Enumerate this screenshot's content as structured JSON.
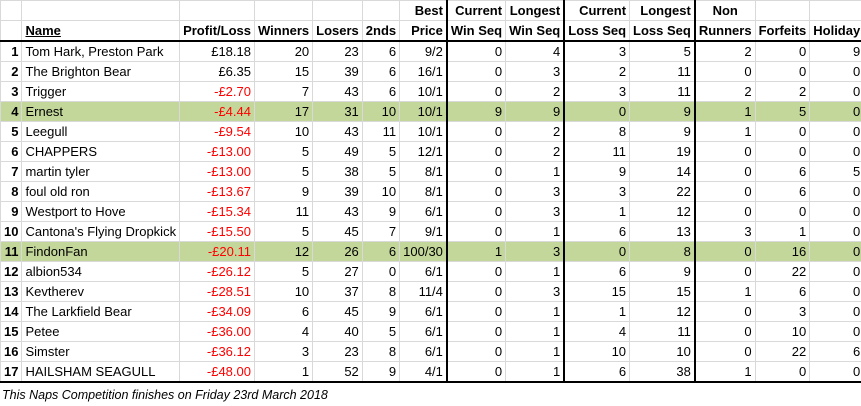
{
  "header": {
    "row1": [
      "",
      "",
      "",
      "",
      "",
      "",
      "Best",
      "Current",
      "Longest",
      "Current",
      "Longest",
      "Non",
      "",
      ""
    ],
    "row2": [
      "",
      "Name",
      "Profit/Loss",
      "Winners",
      "Losers",
      "2nds",
      "Price",
      "Win Seq",
      "Win Seq",
      "Loss Seq",
      "Loss Seq",
      "Runners",
      "Forfeits",
      "Holiday"
    ]
  },
  "rows": [
    {
      "rank": "1",
      "name": "Tom Hark, Preston Park",
      "pl": "£18.18",
      "neg": false,
      "winners": "20",
      "losers": "23",
      "seconds": "6",
      "best": "9/2",
      "cws": "0",
      "lws": "4",
      "cls": "3",
      "lls": "5",
      "nr": "2",
      "ff": "0",
      "hol": "9",
      "hl": false
    },
    {
      "rank": "2",
      "name": "The Brighton Bear",
      "pl": "£6.35",
      "neg": false,
      "winners": "15",
      "losers": "39",
      "seconds": "6",
      "best": "16/1",
      "cws": "0",
      "lws": "3",
      "cls": "2",
      "lls": "11",
      "nr": "0",
      "ff": "0",
      "hol": "0",
      "hl": false
    },
    {
      "rank": "3",
      "name": "Trigger",
      "pl": "-£2.70",
      "neg": true,
      "winners": "7",
      "losers": "43",
      "seconds": "6",
      "best": "10/1",
      "cws": "0",
      "lws": "2",
      "cls": "3",
      "lls": "11",
      "nr": "2",
      "ff": "2",
      "hol": "0",
      "hl": false
    },
    {
      "rank": "4",
      "name": "Ernest",
      "pl": "-£4.44",
      "neg": true,
      "winners": "17",
      "losers": "31",
      "seconds": "10",
      "best": "10/1",
      "cws": "9",
      "lws": "9",
      "cls": "0",
      "lls": "9",
      "nr": "1",
      "ff": "5",
      "hol": "0",
      "hl": true
    },
    {
      "rank": "5",
      "name": "Leegull",
      "pl": "-£9.54",
      "neg": true,
      "winners": "10",
      "losers": "43",
      "seconds": "11",
      "best": "10/1",
      "cws": "0",
      "lws": "2",
      "cls": "8",
      "lls": "9",
      "nr": "1",
      "ff": "0",
      "hol": "0",
      "hl": false
    },
    {
      "rank": "6",
      "name": "CHAPPERS",
      "pl": "-£13.00",
      "neg": true,
      "winners": "5",
      "losers": "49",
      "seconds": "5",
      "best": "12/1",
      "cws": "0",
      "lws": "2",
      "cls": "11",
      "lls": "19",
      "nr": "0",
      "ff": "0",
      "hol": "0",
      "hl": false
    },
    {
      "rank": "7",
      "name": "martin tyler",
      "pl": "-£13.00",
      "neg": true,
      "winners": "5",
      "losers": "38",
      "seconds": "5",
      "best": "8/1",
      "cws": "0",
      "lws": "1",
      "cls": "9",
      "lls": "14",
      "nr": "0",
      "ff": "6",
      "hol": "5",
      "hl": false
    },
    {
      "rank": "8",
      "name": "foul old ron",
      "pl": "-£13.67",
      "neg": true,
      "winners": "9",
      "losers": "39",
      "seconds": "10",
      "best": "8/1",
      "cws": "0",
      "lws": "3",
      "cls": "3",
      "lls": "22",
      "nr": "0",
      "ff": "6",
      "hol": "0",
      "hl": false
    },
    {
      "rank": "9",
      "name": "Westport to Hove",
      "pl": "-£15.34",
      "neg": true,
      "winners": "11",
      "losers": "43",
      "seconds": "9",
      "best": "6/1",
      "cws": "0",
      "lws": "3",
      "cls": "1",
      "lls": "12",
      "nr": "0",
      "ff": "0",
      "hol": "0",
      "hl": false
    },
    {
      "rank": "10",
      "name": "Cantona's Flying Dropkick",
      "pl": "-£15.50",
      "neg": true,
      "winners": "5",
      "losers": "45",
      "seconds": "7",
      "best": "9/1",
      "cws": "0",
      "lws": "1",
      "cls": "6",
      "lls": "13",
      "nr": "3",
      "ff": "1",
      "hol": "0",
      "hl": false
    },
    {
      "rank": "11",
      "name": "FindonFan",
      "pl": "-£20.11",
      "neg": true,
      "winners": "12",
      "losers": "26",
      "seconds": "6",
      "best": "100/30",
      "cws": "1",
      "lws": "3",
      "cls": "0",
      "lls": "8",
      "nr": "0",
      "ff": "16",
      "hol": "0",
      "hl": true
    },
    {
      "rank": "12",
      "name": "albion534",
      "pl": "-£26.12",
      "neg": true,
      "winners": "5",
      "losers": "27",
      "seconds": "0",
      "best": "6/1",
      "cws": "0",
      "lws": "1",
      "cls": "6",
      "lls": "9",
      "nr": "0",
      "ff": "22",
      "hol": "0",
      "hl": false
    },
    {
      "rank": "13",
      "name": "Kevtherev",
      "pl": "-£28.51",
      "neg": true,
      "winners": "10",
      "losers": "37",
      "seconds": "8",
      "best": "11/4",
      "cws": "0",
      "lws": "3",
      "cls": "15",
      "lls": "15",
      "nr": "1",
      "ff": "6",
      "hol": "0",
      "hl": false
    },
    {
      "rank": "14",
      "name": "The Larkfield Bear",
      "pl": "-£34.09",
      "neg": true,
      "winners": "6",
      "losers": "45",
      "seconds": "9",
      "best": "6/1",
      "cws": "0",
      "lws": "1",
      "cls": "1",
      "lls": "12",
      "nr": "0",
      "ff": "3",
      "hol": "0",
      "hl": false
    },
    {
      "rank": "15",
      "name": "Petee",
      "pl": "-£36.00",
      "neg": true,
      "winners": "4",
      "losers": "40",
      "seconds": "5",
      "best": "6/1",
      "cws": "0",
      "lws": "1",
      "cls": "4",
      "lls": "11",
      "nr": "0",
      "ff": "10",
      "hol": "0",
      "hl": false
    },
    {
      "rank": "16",
      "name": "Simster",
      "pl": "-£36.12",
      "neg": true,
      "winners": "3",
      "losers": "23",
      "seconds": "8",
      "best": "6/1",
      "cws": "0",
      "lws": "1",
      "cls": "10",
      "lls": "10",
      "nr": "0",
      "ff": "22",
      "hol": "6",
      "hl": false
    },
    {
      "rank": "17",
      "name": "HAILSHAM SEAGULL",
      "pl": "-£48.00",
      "neg": true,
      "winners": "1",
      "losers": "52",
      "seconds": "9",
      "best": "4/1",
      "cws": "0",
      "lws": "1",
      "cls": "6",
      "lls": "38",
      "nr": "1",
      "ff": "0",
      "hol": "0",
      "hl": false
    }
  ],
  "footer": "This Naps Competition finishes on Friday 23rd March 2018",
  "colors": {
    "highlight": "#c4d79b",
    "negative": "#ff0000",
    "grid": "#d9d9d9"
  }
}
